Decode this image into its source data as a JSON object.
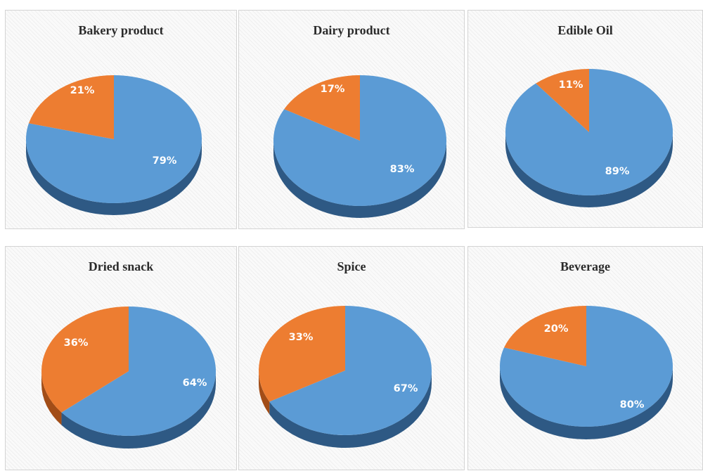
{
  "chart_data": [
    {
      "type": "pie",
      "title": "Bakery product",
      "labels": [
        "79%",
        "21%"
      ],
      "values": [
        79,
        21
      ]
    },
    {
      "type": "pie",
      "title": "Dairy product",
      "labels": [
        "83%",
        "17%"
      ],
      "values": [
        83,
        17
      ]
    },
    {
      "type": "pie",
      "title": "Edible Oil",
      "labels": [
        "89%",
        "11%"
      ],
      "values": [
        89,
        11
      ]
    },
    {
      "type": "pie",
      "title": "Dried snack",
      "labels": [
        "64%",
        "36%"
      ],
      "values": [
        64,
        36
      ]
    },
    {
      "type": "pie",
      "title": "Spice",
      "labels": [
        "67%",
        "33%"
      ],
      "values": [
        67,
        33
      ]
    },
    {
      "type": "pie",
      "title": "Beverage",
      "labels": [
        "80%",
        "20%"
      ],
      "values": [
        80,
        20
      ]
    }
  ],
  "colors": {
    "major": "#5b9bd5",
    "minor": "#ed7d31",
    "major_side": "#2e5984",
    "minor_side": "#a24d17"
  }
}
